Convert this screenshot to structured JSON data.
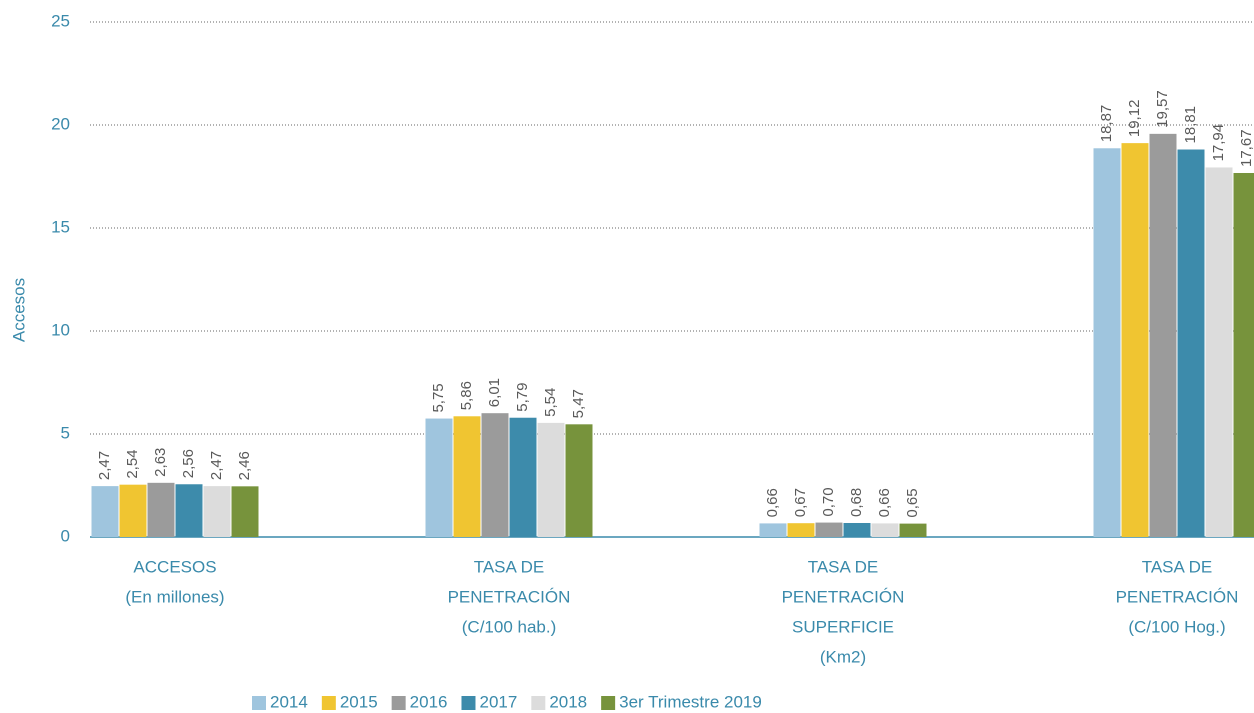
{
  "chart_data": {
    "type": "bar",
    "y_label": "Accesos",
    "categories": [
      [
        "ACCESOS",
        "(En millones)"
      ],
      [
        "TASA DE",
        "PENETRACIÓN",
        "(C/100 hab.)"
      ],
      [
        "TASA DE",
        "PENETRACIÓN",
        "SUPERFICIE",
        "(Km2)"
      ],
      [
        "TASA DE",
        "PENETRACIÓN",
        "(C/100 Hog.)"
      ]
    ],
    "series": [
      {
        "name": "2014",
        "color": "#9fc5de",
        "values": [
          2.47,
          5.75,
          0.66,
          18.87
        ],
        "value_labels": [
          "2,47",
          "5,75",
          "0,66",
          "18,87"
        ]
      },
      {
        "name": "2015",
        "color": "#f0c531",
        "values": [
          2.54,
          5.86,
          0.67,
          19.12
        ],
        "value_labels": [
          "2,54",
          "5,86",
          "0,67",
          "19,12"
        ]
      },
      {
        "name": "2016",
        "color": "#9b9b9b",
        "values": [
          2.63,
          6.01,
          0.7,
          19.57
        ],
        "value_labels": [
          "2,63",
          "6,01",
          "0,70",
          "19,57"
        ]
      },
      {
        "name": "2017",
        "color": "#3d8bab",
        "values": [
          2.56,
          5.79,
          0.68,
          18.81
        ],
        "value_labels": [
          "2,56",
          "5,79",
          "0,68",
          "18,81"
        ]
      },
      {
        "name": "2018",
        "color": "#dcdcdc",
        "values": [
          2.47,
          5.54,
          0.66,
          17.94
        ],
        "value_labels": [
          "2,47",
          "5,54",
          "0,66",
          "17,94"
        ]
      },
      {
        "name": "3er Trimestre 2019",
        "color": "#77933c",
        "values": [
          2.46,
          5.47,
          0.65,
          17.67
        ],
        "value_labels": [
          "2,46",
          "5,47",
          "0,65",
          "17,67"
        ]
      }
    ],
    "ylim": [
      0,
      25
    ],
    "yticks": [
      0,
      5,
      10,
      15,
      20,
      25
    ],
    "grid": true,
    "legend": "bottom"
  }
}
